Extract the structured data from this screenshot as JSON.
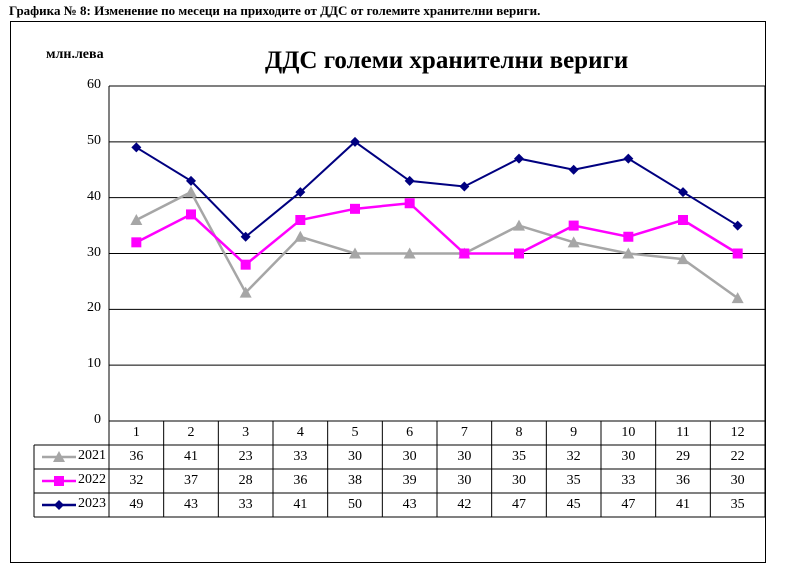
{
  "caption": "Графика № 8: Изменение по месеци на приходите от ДДС от големите хранителни вериги.",
  "chart_data": {
    "type": "line",
    "title": "ДДС големи хранителни вериги",
    "ylabel": "млн.лева",
    "ylim": [
      0,
      60
    ],
    "yticks": [
      "0",
      "10",
      "20",
      "30",
      "40",
      "50",
      "60"
    ],
    "categories": [
      "1",
      "2",
      "3",
      "4",
      "5",
      "6",
      "7",
      "8",
      "9",
      "10",
      "11",
      "12"
    ],
    "grid": true,
    "legend": "data-table",
    "series": [
      {
        "name": "2021",
        "color": "#a6a6a6",
        "marker": "triangle",
        "values": [
          36,
          41,
          23,
          33,
          30,
          30,
          30,
          35,
          32,
          30,
          29,
          22
        ],
        "labels": [
          "36",
          "41",
          "23",
          "33",
          "30",
          "30",
          "30",
          "35",
          "32",
          "30",
          "29",
          "22"
        ]
      },
      {
        "name": "2022",
        "color": "#ff00ff",
        "marker": "square",
        "values": [
          32,
          37,
          28,
          36,
          38,
          39,
          30,
          30,
          35,
          33,
          36,
          30
        ],
        "labels": [
          "32",
          "37",
          "28",
          "36",
          "38",
          "39",
          "30",
          "30",
          "35",
          "33",
          "36",
          "30"
        ]
      },
      {
        "name": "2023",
        "color": "#000080",
        "marker": "diamond",
        "values": [
          49,
          43,
          33,
          41,
          50,
          43,
          42,
          47,
          45,
          47,
          41,
          35
        ],
        "labels": [
          "49",
          "43",
          "33",
          "41",
          "50",
          "43",
          "42",
          "47",
          "45",
          "47",
          "41",
          "35"
        ]
      }
    ]
  }
}
